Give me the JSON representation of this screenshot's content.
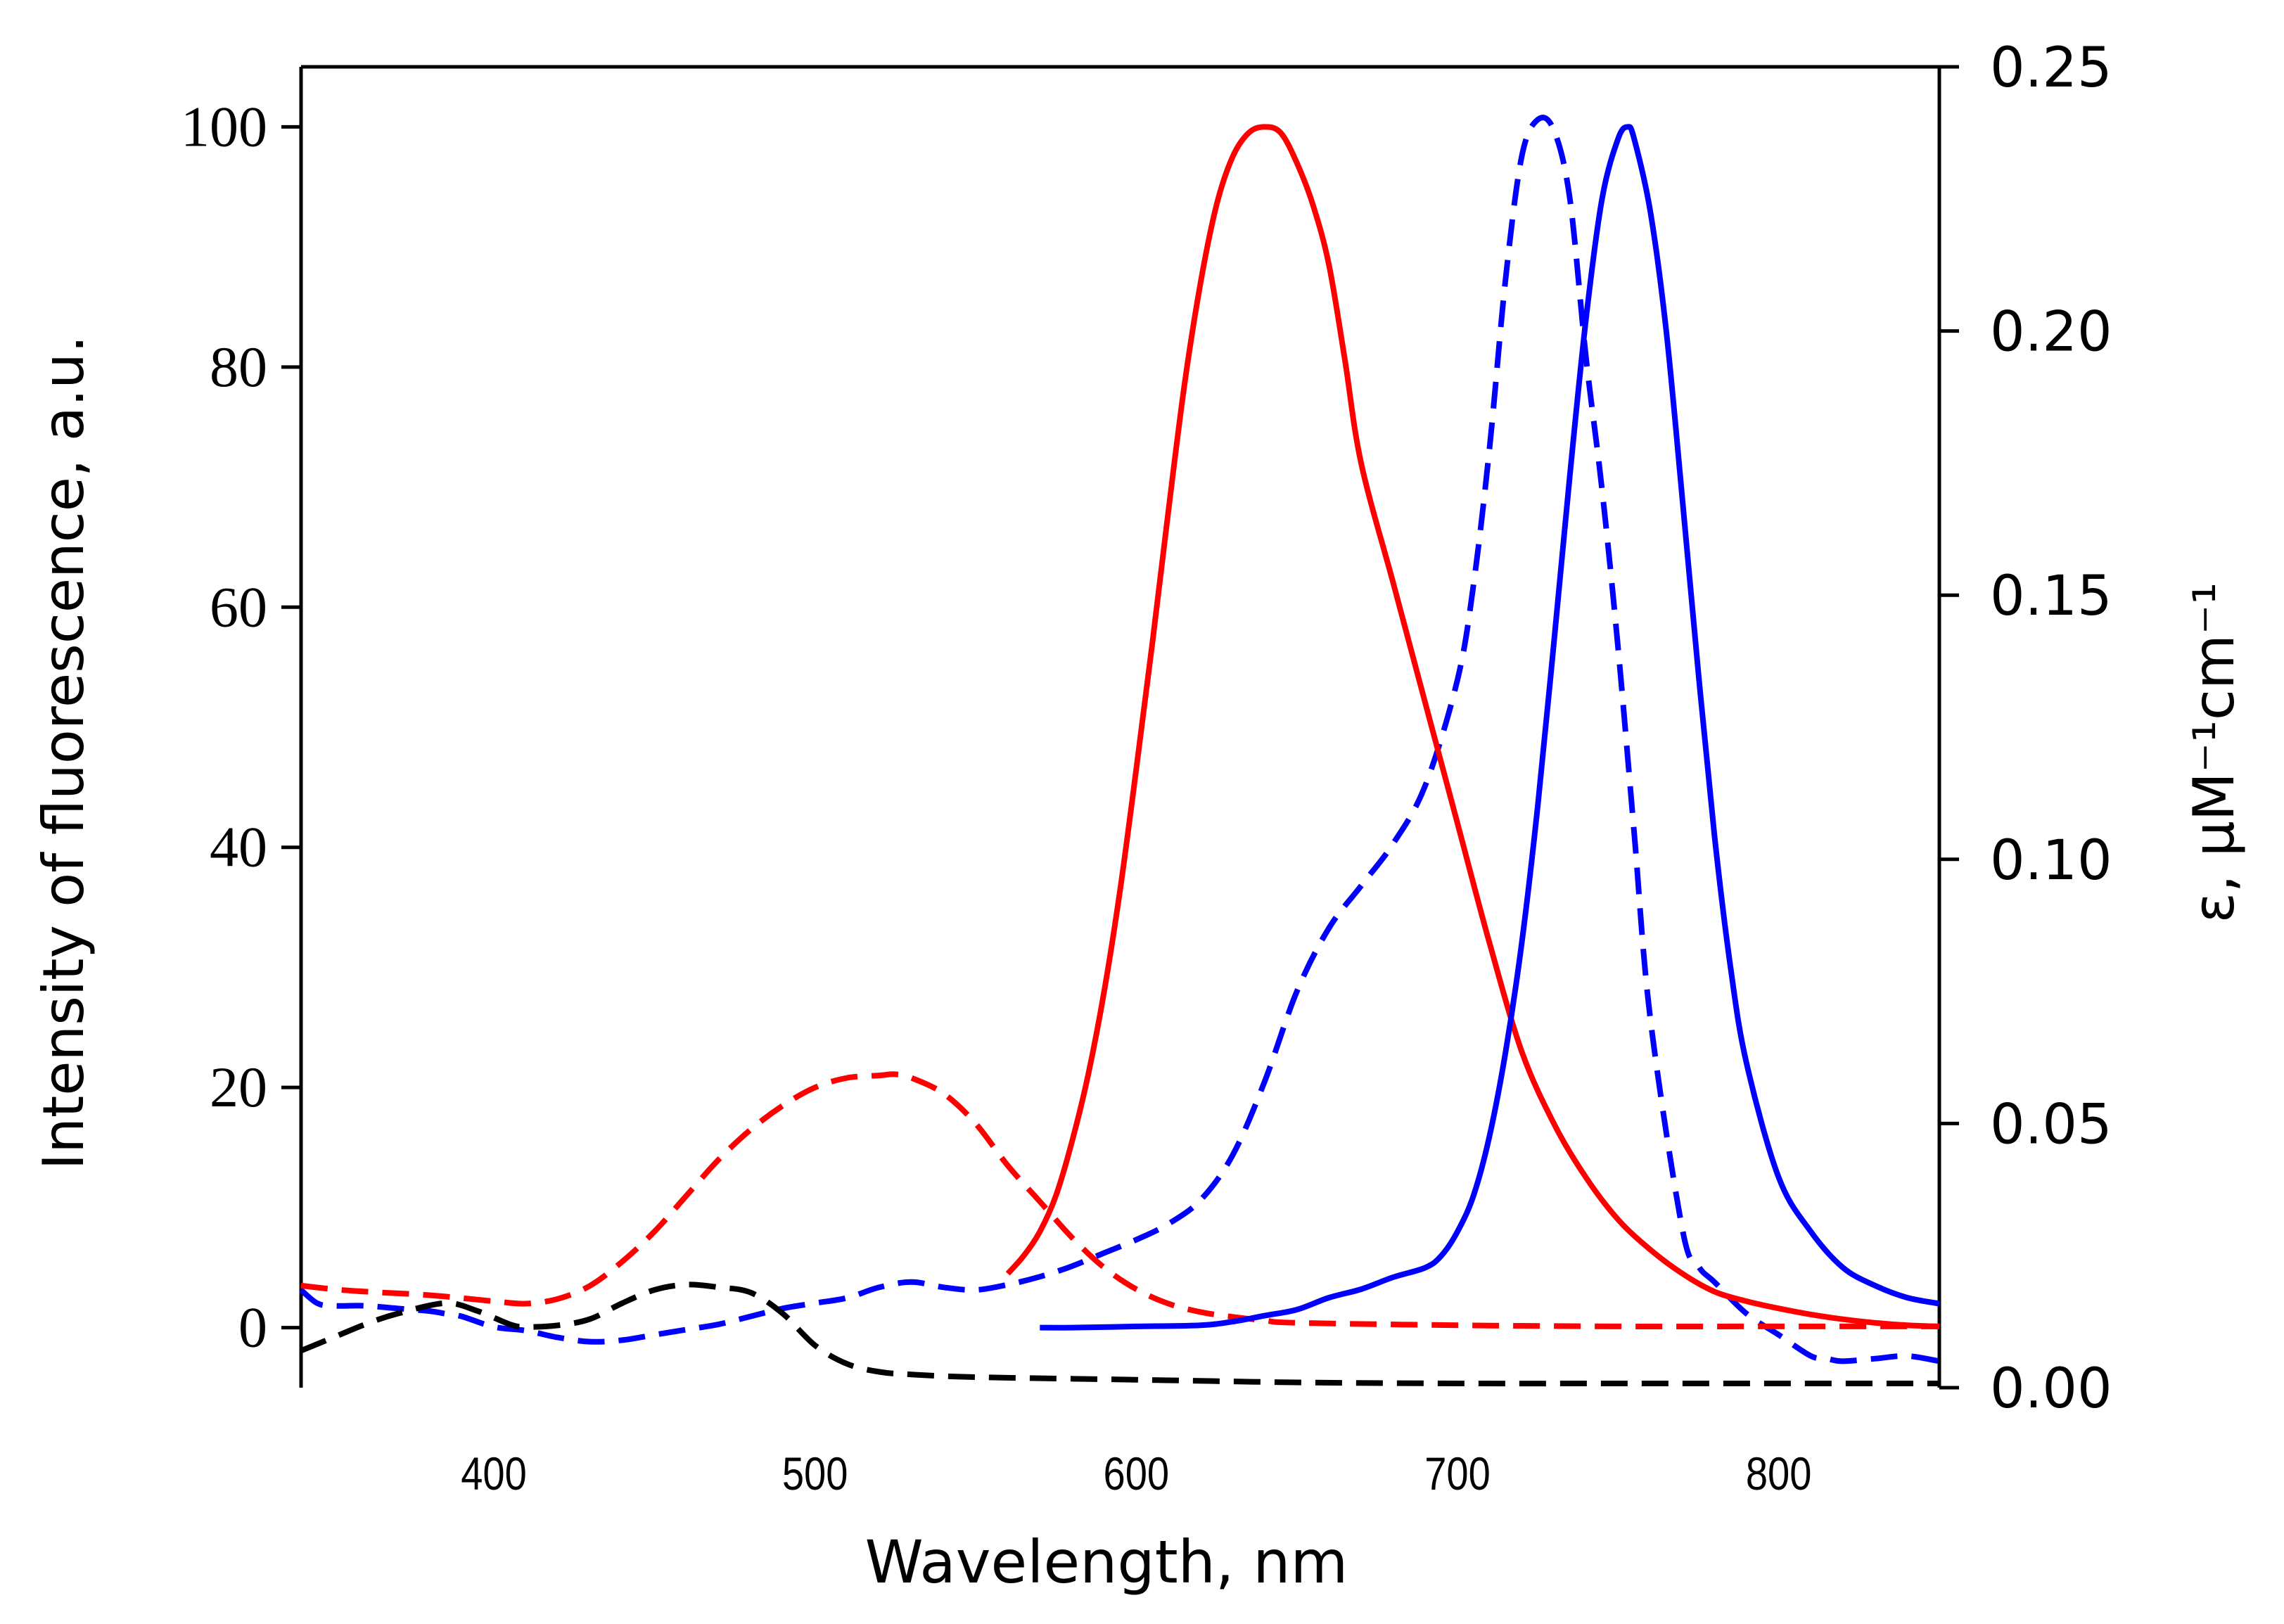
{
  "chart_data": {
    "type": "line",
    "title": "",
    "xlabel": "Wavelength, nm",
    "ylabel_left": "Intensity of fluorescence, a.u.",
    "ylabel_right": "ε, μM⁻¹cm⁻¹",
    "xlim": [
      340,
      850
    ],
    "ylim_left": [
      -5,
      105
    ],
    "ylim_right": [
      0,
      0.25
    ],
    "grid": false,
    "legend": "none",
    "x_ticks": [
      {
        "value": 400,
        "label": "400"
      },
      {
        "value": 500,
        "label": "500"
      },
      {
        "value": 600,
        "label": "600"
      },
      {
        "value": 700,
        "label": "700"
      },
      {
        "value": 800,
        "label": "800"
      }
    ],
    "y_left_ticks": [
      {
        "value": 0,
        "label": "0"
      },
      {
        "value": 20,
        "label": "20"
      },
      {
        "value": 40,
        "label": "40"
      },
      {
        "value": 60,
        "label": "60"
      },
      {
        "value": 80,
        "label": "80"
      },
      {
        "value": 100,
        "label": "100"
      }
    ],
    "y_right_ticks": [
      {
        "value": 0.0,
        "label": "0.00"
      },
      {
        "value": 0.05,
        "label": "0.05"
      },
      {
        "value": 0.1,
        "label": "0.10"
      },
      {
        "value": 0.15,
        "label": "0.15"
      },
      {
        "value": 0.2,
        "label": "0.20"
      },
      {
        "value": 0.25,
        "label": "0.25"
      }
    ],
    "series": [
      {
        "name": "blue-dashed",
        "color": "#0000ff",
        "style": "dashed",
        "axis": "right",
        "x": [
          340,
          345,
          350,
          360,
          370,
          380,
          385,
          390,
          400,
          410,
          420,
          430,
          440,
          450,
          460,
          470,
          480,
          490,
          500,
          510,
          520,
          530,
          540,
          550,
          560,
          570,
          580,
          590,
          600,
          610,
          620,
          630,
          640,
          650,
          660,
          670,
          680,
          690,
          700,
          705,
          710,
          715,
          720,
          725,
          730,
          735,
          740,
          745,
          750,
          755,
          760,
          770,
          775,
          780,
          790,
          800,
          810,
          815,
          820,
          830,
          840,
          850
        ],
        "values": [
          0.0185,
          0.016,
          0.0155,
          0.0155,
          0.015,
          0.0145,
          0.014,
          0.0135,
          0.0115,
          0.0108,
          0.0095,
          0.0087,
          0.009,
          0.01,
          0.011,
          0.012,
          0.0135,
          0.015,
          0.016,
          0.017,
          0.019,
          0.02,
          0.019,
          0.0185,
          0.0195,
          0.021,
          0.023,
          0.0255,
          0.028,
          0.031,
          0.0355,
          0.044,
          0.058,
          0.075,
          0.087,
          0.095,
          0.103,
          0.114,
          0.134,
          0.152,
          0.178,
          0.21,
          0.233,
          0.24,
          0.238,
          0.225,
          0.195,
          0.17,
          0.14,
          0.105,
          0.07,
          0.03,
          0.023,
          0.02,
          0.014,
          0.01,
          0.006,
          0.0055,
          0.005,
          0.0055,
          0.006,
          0.005
        ]
      },
      {
        "name": "black-dashed",
        "color": "#000000",
        "style": "dashed",
        "axis": "right",
        "x": [
          340,
          350,
          360,
          370,
          385,
          395,
          405,
          410,
          420,
          430,
          440,
          450,
          460,
          470,
          480,
          490,
          500,
          510,
          520,
          530,
          550,
          600,
          650,
          700,
          750,
          800,
          850
        ],
        "values": [
          0.007,
          0.0095,
          0.012,
          0.014,
          0.016,
          0.0145,
          0.012,
          0.0115,
          0.0118,
          0.013,
          0.016,
          0.0185,
          0.0195,
          0.019,
          0.018,
          0.014,
          0.008,
          0.0045,
          0.003,
          0.0025,
          0.002,
          0.0015,
          0.001,
          0.0008,
          0.0008,
          0.0008,
          0.0008
        ]
      },
      {
        "name": "red-dashed",
        "color": "#ff0000",
        "style": "dashed",
        "axis": "left",
        "x": [
          340,
          350,
          360,
          380,
          400,
          410,
          420,
          430,
          440,
          450,
          460,
          470,
          480,
          490,
          500,
          510,
          520,
          525,
          530,
          540,
          550,
          560,
          570,
          580,
          590,
          600,
          610,
          620,
          630,
          640,
          650,
          700,
          750,
          800,
          850
        ],
        "values": [
          3.5,
          3.2,
          3.0,
          2.7,
          2.2,
          2.0,
          2.4,
          3.5,
          5.5,
          8.0,
          11.0,
          14.0,
          16.5,
          18.5,
          20.0,
          20.8,
          21.0,
          21.1,
          20.8,
          19.5,
          17.0,
          13.5,
          10.5,
          7.5,
          5.0,
          3.2,
          2.0,
          1.3,
          0.9,
          0.6,
          0.4,
          0.2,
          0.1,
          0.1,
          0.1
        ]
      },
      {
        "name": "red-solid",
        "color": "#ff0000",
        "style": "solid",
        "axis": "left",
        "x": [
          560,
          565,
          570,
          575,
          580,
          585,
          590,
          595,
          600,
          605,
          610,
          615,
          620,
          625,
          630,
          635,
          640,
          645,
          650,
          655,
          660,
          665,
          670,
          680,
          690,
          700,
          710,
          720,
          730,
          740,
          750,
          760,
          770,
          780,
          790,
          800,
          810,
          820,
          830,
          840,
          850
        ],
        "values": [
          4.5,
          6.0,
          8.0,
          11.0,
          15.5,
          21.0,
          28.0,
          36.5,
          46.5,
          57.0,
          68.0,
          78.5,
          87.0,
          93.5,
          97.5,
          99.5,
          100.0,
          99.5,
          97.0,
          93.5,
          88.5,
          80.5,
          72.0,
          62.0,
          52.0,
          42.0,
          32.0,
          23.0,
          17.0,
          12.5,
          9.0,
          6.5,
          4.5,
          3.0,
          2.2,
          1.6,
          1.1,
          0.7,
          0.4,
          0.2,
          0.1
        ]
      },
      {
        "name": "blue-solid",
        "color": "#0000ff",
        "style": "solid",
        "axis": "left",
        "x": [
          570,
          580,
          600,
          620,
          630,
          640,
          650,
          660,
          670,
          680,
          690,
          695,
          700,
          705,
          710,
          715,
          720,
          725,
          730,
          735,
          740,
          745,
          750,
          753,
          755,
          760,
          765,
          770,
          775,
          780,
          785,
          790,
          800,
          810,
          820,
          830,
          840,
          850
        ],
        "values": [
          0,
          0,
          0.1,
          0.2,
          0.5,
          1.0,
          1.5,
          2.5,
          3.2,
          4.2,
          5.0,
          6.0,
          8.0,
          11.0,
          16.0,
          23.0,
          32.0,
          43.5,
          57.0,
          71.0,
          84.0,
          94.0,
          99.0,
          100.0,
          99.0,
          93.0,
          83.0,
          69.0,
          54.5,
          41.0,
          30.0,
          22.0,
          12.5,
          8.0,
          5.0,
          3.5,
          2.5,
          2.0
        ]
      }
    ]
  }
}
